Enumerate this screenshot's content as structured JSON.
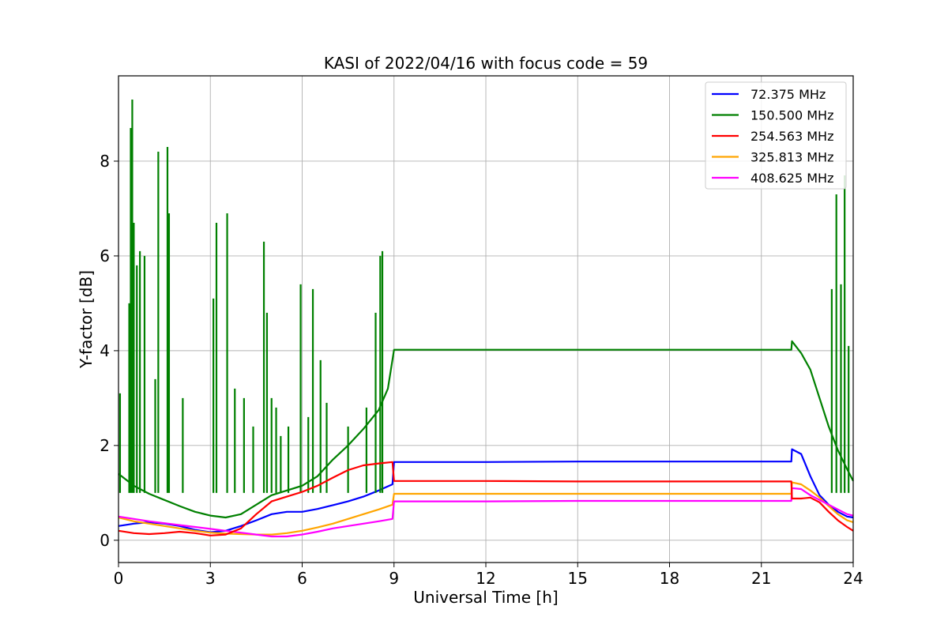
{
  "chart_data": {
    "type": "line",
    "title": "KASI of 2022/04/16 with focus code = 59",
    "xlabel": "Universal Time [h]",
    "ylabel": "Y-factor [dB]",
    "xlim": [
      0,
      24
    ],
    "ylim": [
      -0.47,
      9.8
    ],
    "xticks": [
      0,
      3,
      6,
      9,
      12,
      15,
      18,
      21,
      24
    ],
    "yticks": [
      0,
      2,
      4,
      6,
      8
    ],
    "grid": true,
    "legend_position": "top-right",
    "series": [
      {
        "name": " 72.375 MHz",
        "color": "#0000ff",
        "points": [
          [
            0,
            0.3
          ],
          [
            0.5,
            0.35
          ],
          [
            1,
            0.38
          ],
          [
            1.5,
            0.35
          ],
          [
            2,
            0.3
          ],
          [
            2.5,
            0.22
          ],
          [
            3,
            0.17
          ],
          [
            3.5,
            0.2
          ],
          [
            4,
            0.3
          ],
          [
            4.5,
            0.42
          ],
          [
            5,
            0.55
          ],
          [
            5.5,
            0.6
          ],
          [
            6,
            0.6
          ],
          [
            6.5,
            0.66
          ],
          [
            7,
            0.74
          ],
          [
            7.5,
            0.82
          ],
          [
            8,
            0.92
          ],
          [
            8.5,
            1.05
          ],
          [
            8.95,
            1.18
          ],
          [
            9.0,
            1.65
          ],
          [
            12,
            1.65
          ],
          [
            15,
            1.66
          ],
          [
            18,
            1.66
          ],
          [
            21,
            1.66
          ],
          [
            21.98,
            1.66
          ],
          [
            22.0,
            1.92
          ],
          [
            22.3,
            1.82
          ],
          [
            22.6,
            1.35
          ],
          [
            22.9,
            0.95
          ],
          [
            23.2,
            0.75
          ],
          [
            23.5,
            0.6
          ],
          [
            23.8,
            0.5
          ],
          [
            24,
            0.48
          ]
        ]
      },
      {
        "name": "150.500 MHz",
        "color": "#008000",
        "points": [
          [
            0,
            1.4
          ],
          [
            0.5,
            1.15
          ],
          [
            1,
            0.98
          ],
          [
            1.5,
            0.85
          ],
          [
            2,
            0.72
          ],
          [
            2.5,
            0.6
          ],
          [
            3,
            0.52
          ],
          [
            3.5,
            0.48
          ],
          [
            4,
            0.55
          ],
          [
            4.5,
            0.75
          ],
          [
            5,
            0.95
          ],
          [
            5.5,
            1.05
          ],
          [
            6,
            1.15
          ],
          [
            6.5,
            1.35
          ],
          [
            7,
            1.7
          ],
          [
            7.5,
            2.0
          ],
          [
            8,
            2.35
          ],
          [
            8.5,
            2.75
          ],
          [
            8.8,
            3.2
          ],
          [
            9.0,
            4.02
          ],
          [
            12,
            4.02
          ],
          [
            15,
            4.02
          ],
          [
            18,
            4.02
          ],
          [
            21,
            4.02
          ],
          [
            21.98,
            4.02
          ],
          [
            22.0,
            4.2
          ],
          [
            22.3,
            3.95
          ],
          [
            22.6,
            3.6
          ],
          [
            22.9,
            3.0
          ],
          [
            23.2,
            2.4
          ],
          [
            23.5,
            1.9
          ],
          [
            23.8,
            1.5
          ],
          [
            24,
            1.25
          ]
        ],
        "spikes": [
          [
            0.05,
            3.1
          ],
          [
            0.35,
            5.0
          ],
          [
            0.4,
            8.7
          ],
          [
            0.45,
            9.3
          ],
          [
            0.5,
            6.7
          ],
          [
            0.6,
            5.8
          ],
          [
            0.7,
            6.1
          ],
          [
            0.85,
            6.0
          ],
          [
            1.2,
            3.4
          ],
          [
            1.3,
            8.2
          ],
          [
            1.6,
            8.3
          ],
          [
            1.65,
            6.9
          ],
          [
            2.1,
            3.0
          ],
          [
            3.1,
            5.1
          ],
          [
            3.2,
            6.7
          ],
          [
            3.55,
            6.9
          ],
          [
            3.8,
            3.2
          ],
          [
            4.1,
            3.0
          ],
          [
            4.4,
            2.4
          ],
          [
            4.75,
            6.3
          ],
          [
            4.85,
            4.8
          ],
          [
            5.0,
            3.0
          ],
          [
            5.15,
            2.8
          ],
          [
            5.3,
            2.2
          ],
          [
            5.55,
            2.4
          ],
          [
            5.95,
            5.4
          ],
          [
            6.2,
            2.6
          ],
          [
            6.35,
            5.3
          ],
          [
            6.6,
            3.8
          ],
          [
            6.8,
            2.9
          ],
          [
            7.5,
            2.4
          ],
          [
            8.1,
            2.8
          ],
          [
            8.4,
            4.8
          ],
          [
            8.55,
            6.0
          ],
          [
            8.62,
            6.1
          ],
          [
            23.3,
            5.3
          ],
          [
            23.45,
            7.3
          ],
          [
            23.6,
            5.4
          ],
          [
            23.72,
            7.7
          ],
          [
            23.85,
            4.1
          ]
        ]
      },
      {
        "name": "254.563 MHz",
        "color": "#ff0000",
        "points": [
          [
            0,
            0.2
          ],
          [
            0.5,
            0.15
          ],
          [
            1,
            0.13
          ],
          [
            1.5,
            0.15
          ],
          [
            2,
            0.18
          ],
          [
            2.5,
            0.15
          ],
          [
            3,
            0.1
          ],
          [
            3.5,
            0.12
          ],
          [
            4,
            0.25
          ],
          [
            4.5,
            0.55
          ],
          [
            5,
            0.82
          ],
          [
            5.5,
            0.92
          ],
          [
            6,
            1.02
          ],
          [
            6.5,
            1.15
          ],
          [
            7,
            1.32
          ],
          [
            7.5,
            1.48
          ],
          [
            8,
            1.58
          ],
          [
            8.5,
            1.62
          ],
          [
            8.95,
            1.65
          ],
          [
            9.0,
            1.25
          ],
          [
            12,
            1.25
          ],
          [
            15,
            1.24
          ],
          [
            18,
            1.24
          ],
          [
            21,
            1.24
          ],
          [
            21.98,
            1.24
          ],
          [
            22.0,
            0.88
          ],
          [
            22.3,
            0.88
          ],
          [
            22.6,
            0.9
          ],
          [
            22.9,
            0.8
          ],
          [
            23.2,
            0.6
          ],
          [
            23.5,
            0.42
          ],
          [
            23.8,
            0.28
          ],
          [
            24,
            0.2
          ]
        ]
      },
      {
        "name": "325.813 MHz",
        "color": "#ffa500",
        "points": [
          [
            0,
            0.48
          ],
          [
            0.5,
            0.4
          ],
          [
            1,
            0.35
          ],
          [
            1.5,
            0.3
          ],
          [
            2,
            0.25
          ],
          [
            2.5,
            0.2
          ],
          [
            3,
            0.16
          ],
          [
            3.5,
            0.14
          ],
          [
            4,
            0.13
          ],
          [
            4.5,
            0.12
          ],
          [
            5,
            0.12
          ],
          [
            5.5,
            0.15
          ],
          [
            6,
            0.2
          ],
          [
            6.5,
            0.27
          ],
          [
            7,
            0.35
          ],
          [
            7.5,
            0.45
          ],
          [
            8,
            0.55
          ],
          [
            8.5,
            0.65
          ],
          [
            8.95,
            0.75
          ],
          [
            9.0,
            0.98
          ],
          [
            12,
            0.98
          ],
          [
            15,
            0.98
          ],
          [
            18,
            0.98
          ],
          [
            21,
            0.98
          ],
          [
            21.98,
            0.98
          ],
          [
            22.0,
            1.22
          ],
          [
            22.3,
            1.18
          ],
          [
            22.6,
            1.05
          ],
          [
            22.9,
            0.9
          ],
          [
            23.2,
            0.72
          ],
          [
            23.5,
            0.55
          ],
          [
            23.8,
            0.42
          ],
          [
            24,
            0.38
          ]
        ]
      },
      {
        "name": "408.625 MHz",
        "color": "#ff00ff",
        "points": [
          [
            0,
            0.5
          ],
          [
            0.5,
            0.45
          ],
          [
            1,
            0.4
          ],
          [
            1.5,
            0.36
          ],
          [
            2,
            0.32
          ],
          [
            2.5,
            0.28
          ],
          [
            3,
            0.24
          ],
          [
            3.5,
            0.2
          ],
          [
            4,
            0.16
          ],
          [
            4.5,
            0.12
          ],
          [
            5,
            0.08
          ],
          [
            5.5,
            0.08
          ],
          [
            6,
            0.12
          ],
          [
            6.5,
            0.18
          ],
          [
            7,
            0.25
          ],
          [
            7.5,
            0.3
          ],
          [
            8,
            0.35
          ],
          [
            8.5,
            0.4
          ],
          [
            8.95,
            0.45
          ],
          [
            9.0,
            0.82
          ],
          [
            12,
            0.82
          ],
          [
            15,
            0.83
          ],
          [
            18,
            0.83
          ],
          [
            21,
            0.83
          ],
          [
            21.98,
            0.83
          ],
          [
            22.0,
            1.1
          ],
          [
            22.3,
            1.08
          ],
          [
            22.6,
            0.95
          ],
          [
            22.9,
            0.85
          ],
          [
            23.2,
            0.75
          ],
          [
            23.5,
            0.65
          ],
          [
            23.8,
            0.55
          ],
          [
            24,
            0.52
          ]
        ]
      }
    ]
  }
}
